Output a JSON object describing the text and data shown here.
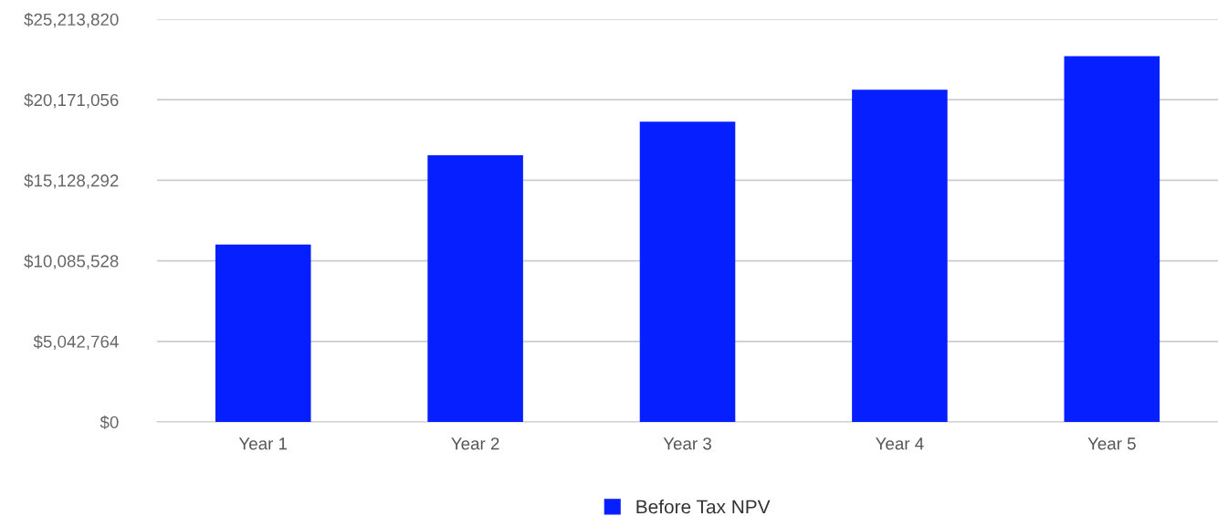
{
  "chart_data": {
    "type": "bar",
    "categories": [
      "Year 1",
      "Year 2",
      "Year 3",
      "Year 4",
      "Year 5"
    ],
    "series": [
      {
        "name": "Before Tax NPV",
        "color": "#061ffe",
        "values": [
          11100000,
          16700000,
          18800000,
          20800000,
          22900000
        ]
      }
    ],
    "ylim": [
      0,
      25213820
    ],
    "yticks": [
      {
        "value": 0,
        "label": "$0"
      },
      {
        "value": 5042764,
        "label": "$5,042,764"
      },
      {
        "value": 10085528,
        "label": "$10,085,528"
      },
      {
        "value": 15128292,
        "label": "$15,128,292"
      },
      {
        "value": 20171056,
        "label": "$20,171,056"
      },
      {
        "value": 25213820,
        "label": "$25,213,820"
      }
    ],
    "grid": "y",
    "legend": "bottom"
  }
}
